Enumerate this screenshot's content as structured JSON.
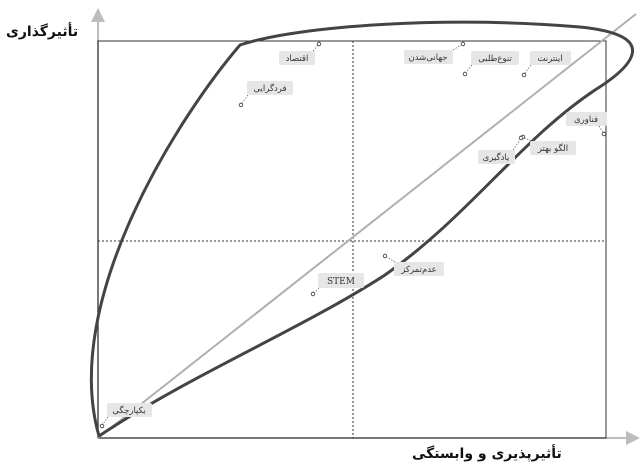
{
  "axes": {
    "y_title": "تأثیرگذاری",
    "x_title": "تأثیرپذیری و وابستگی"
  },
  "labels": {
    "eqtesad": "اقتصاد",
    "fardgerayi": "فردگرایی",
    "jahanishodan": "جهانی‌شدن",
    "tanavotalabi": "تنوع‌طلبی",
    "internet": "اینترنت",
    "fanavari": "فناوری",
    "olgoo_behtar": "الگو بهتر",
    "yadgiri": "یادگیری",
    "adam_tamarkoz": "عدم‌تمرکز",
    "stem": "STEM",
    "yekparchegi": "یکپارچگی"
  },
  "colors": {
    "axis": "#bdbdbd",
    "boundary": "#333333",
    "curve": "#444444",
    "tag_bg": "#e6e6e6"
  }
}
